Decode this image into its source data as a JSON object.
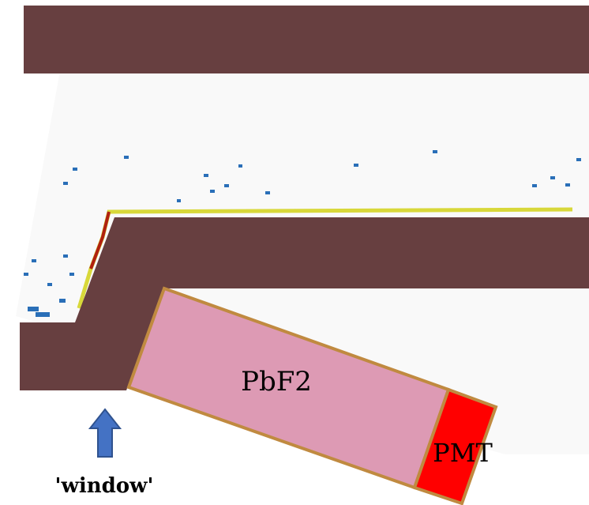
{
  "crystal": {
    "label": "PbF2"
  },
  "pmt": {
    "label": "PMT"
  },
  "window": {
    "label": "'window'"
  }
}
